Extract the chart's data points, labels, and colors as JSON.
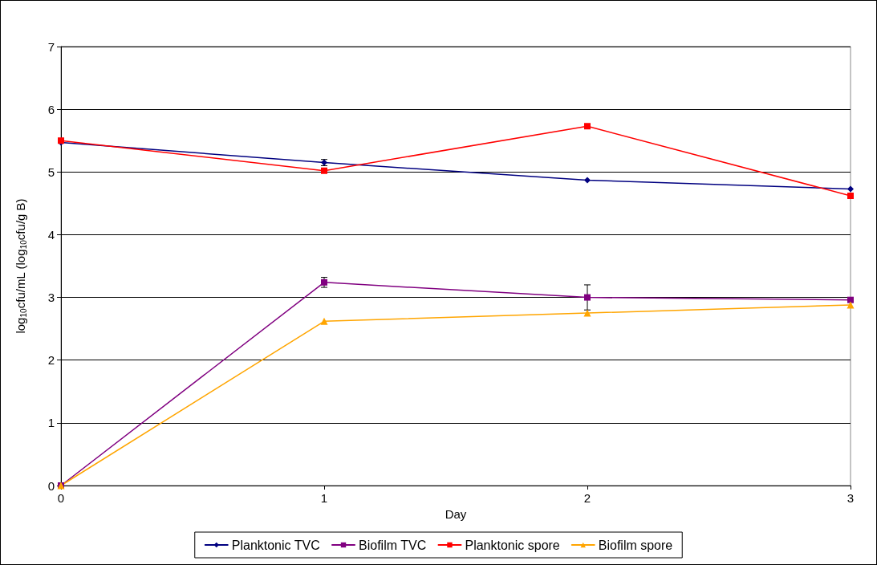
{
  "chart_data": {
    "type": "line",
    "xlabel": "Day",
    "ylabel": "log$_{10}$cfu/mL (log$_{10}$cfu/g B)",
    "x": [
      0,
      1,
      2,
      3
    ],
    "xlim": [
      0,
      3
    ],
    "xticks": [
      0,
      1,
      2,
      3
    ],
    "ylim": [
      0,
      7
    ],
    "yticks": [
      0,
      1,
      2,
      3,
      4,
      5,
      6,
      7
    ],
    "grid": "y",
    "legend": "bottom",
    "line_style": "solid",
    "series": [
      {
        "name": "Planktonic TVC",
        "color": "#000080",
        "marker": "diamond",
        "values": [
          5.47,
          5.15,
          4.87,
          4.73
        ],
        "errors": [
          null,
          0.05,
          null,
          null
        ]
      },
      {
        "name": "Biofilm TVC",
        "color": "#800080",
        "marker": "square",
        "values": [
          0,
          3.24,
          3.0,
          2.96
        ],
        "errors": [
          null,
          0.08,
          0.2,
          null
        ]
      },
      {
        "name": "Planktonic spore",
        "color": "#ff0000",
        "marker": "square",
        "values": [
          5.5,
          5.02,
          5.73,
          4.62
        ]
      },
      {
        "name": "Biofilm spore",
        "color": "#ffa500",
        "marker": "triangle",
        "values": [
          0,
          2.62,
          2.75,
          2.88
        ]
      }
    ]
  }
}
